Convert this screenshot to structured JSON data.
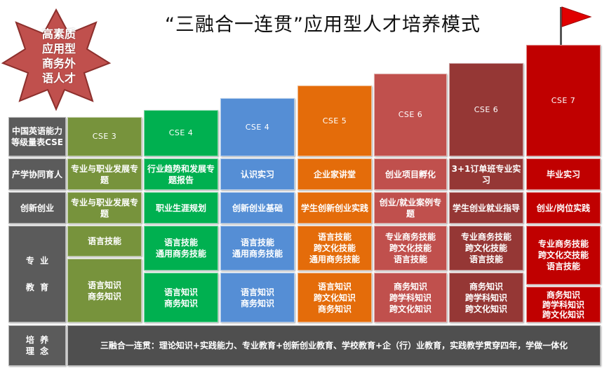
{
  "title": "“三融合一连贯”应用型人才培养模式",
  "badge": {
    "lines": [
      "高素质",
      "应用型",
      "商务外",
      "语人才"
    ],
    "icon": "star-badge",
    "color": "#c0504d"
  },
  "flag": {
    "icon": "red-flag-icon",
    "color": "#e00000"
  },
  "colors": [
    "#77933c",
    "#00b050",
    "#558ed5",
    "#e46c0a",
    "#c0504d",
    "#953735",
    "#c00000"
  ],
  "row_headers": {
    "cse": "中国英语能力等级量表CSE",
    "industry": "产学协同育人",
    "innovation": "创新创业",
    "edu_line1": "专  业",
    "edu_line2": "教  育",
    "philosophy_line1": "培  养",
    "philosophy_line2": "理  念"
  },
  "stages": [
    {
      "level": "CSE 3",
      "industry": "专业与职业发展专题",
      "innovation": "专业与职业发展专题",
      "skills": "语言技能",
      "knowledge": "语言知识\n商务知识"
    },
    {
      "level": "CSE 4",
      "industry": "行业趋势和发展专题报告",
      "innovation": "职业生涯规划",
      "skills": "语言技能\n通用商务技能",
      "knowledge": "语言知识\n商务知识"
    },
    {
      "level": "CSE 4",
      "industry": "认识实习",
      "innovation": "创新创业基础",
      "skills": "语言技能\n通用商务技能",
      "knowledge": "语言知识\n商务知识"
    },
    {
      "level": "CSE 5",
      "industry": "企业家讲堂",
      "innovation": "学生创新创业实践",
      "skills": "语言技能\n跨文化技能\n通用商务技能",
      "knowledge": "语言知识\n跨文化知识\n商务知识"
    },
    {
      "level": "CSE 6",
      "industry": "创业项目孵化",
      "innovation": "创业/就业案例专题",
      "skills": "专业商务技能\n跨文化技能\n语言技能",
      "knowledge": "商务知识\n跨学科知识\n跨文化知识"
    },
    {
      "level": "CSE 6",
      "industry": "3+1订单班专业实习",
      "innovation": "学生创业就业指导",
      "skills": "专业商务技能\n跨文化技能\n语言技能",
      "knowledge": "商务知识\n跨学科知识\n跨文化知识"
    },
    {
      "level": "CSE 7",
      "industry": "毕业实习",
      "innovation": "创业/岗位实践",
      "skills": "专业商务技能\n跨文化交技能\n语言技能",
      "knowledge": "商务知识\n跨学科知识\n跨文化知识"
    }
  ],
  "philosophy": "三融合一连贯：理论知识+实践能力、专业教育+创新创业教育、学校教育+企（行）业教育，实践教学贯穿四年，学做一体化"
}
